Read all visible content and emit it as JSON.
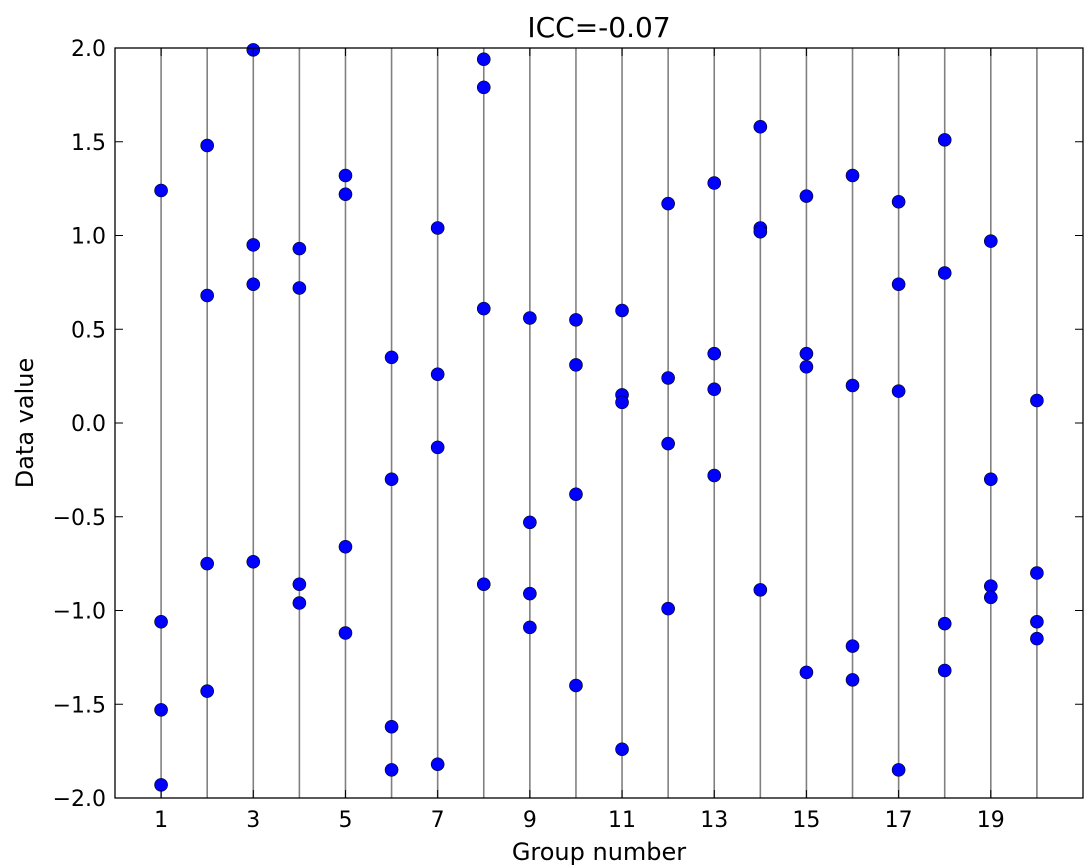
{
  "chart_data": {
    "type": "scatter",
    "title": "ICC=-0.07",
    "xlabel": "Group number",
    "ylabel": "Data value",
    "xlim": [
      0,
      21
    ],
    "ylim": [
      -2.0,
      2.0
    ],
    "xticks": [
      1,
      3,
      5,
      7,
      9,
      11,
      13,
      15,
      17,
      19
    ],
    "xtick_labels": [
      "1",
      "3",
      "5",
      "7",
      "9",
      "11",
      "13",
      "15",
      "17",
      "19"
    ],
    "yticks": [
      2.0,
      1.5,
      1.0,
      0.5,
      0.0,
      -0.5,
      -1.0,
      -1.5,
      -2.0
    ],
    "ytick_labels": [
      "2.0",
      "1.5",
      "1.0",
      "0.5",
      "0.0",
      "−0.5",
      "−1.0",
      "−1.5",
      "−2.0"
    ],
    "group_lines": [
      1,
      2,
      3,
      4,
      5,
      6,
      7,
      8,
      9,
      10,
      11,
      12,
      13,
      14,
      15,
      16,
      17,
      18,
      19,
      20
    ],
    "grid": false,
    "marker_color": "#0000ff",
    "line_color": "#808080",
    "points": [
      {
        "x": 1,
        "y": 1.24
      },
      {
        "x": 1,
        "y": -1.06
      },
      {
        "x": 1,
        "y": -1.53
      },
      {
        "x": 1,
        "y": -1.93
      },
      {
        "x": 2,
        "y": 1.48
      },
      {
        "x": 2,
        "y": 0.68
      },
      {
        "x": 2,
        "y": -0.75
      },
      {
        "x": 2,
        "y": -1.43
      },
      {
        "x": 3,
        "y": 1.99
      },
      {
        "x": 3,
        "y": 0.95
      },
      {
        "x": 3,
        "y": 0.74
      },
      {
        "x": 3,
        "y": -0.74
      },
      {
        "x": 4,
        "y": 0.93
      },
      {
        "x": 4,
        "y": 0.72
      },
      {
        "x": 4,
        "y": -0.86
      },
      {
        "x": 4,
        "y": -0.96
      },
      {
        "x": 5,
        "y": 1.32
      },
      {
        "x": 5,
        "y": 1.22
      },
      {
        "x": 5,
        "y": -0.66
      },
      {
        "x": 5,
        "y": -1.12
      },
      {
        "x": 6,
        "y": 0.35
      },
      {
        "x": 6,
        "y": -0.3
      },
      {
        "x": 6,
        "y": -1.62
      },
      {
        "x": 6,
        "y": -1.85
      },
      {
        "x": 7,
        "y": 1.04
      },
      {
        "x": 7,
        "y": 0.26
      },
      {
        "x": 7,
        "y": -0.13
      },
      {
        "x": 7,
        "y": -1.82
      },
      {
        "x": 8,
        "y": 1.94
      },
      {
        "x": 8,
        "y": 1.79
      },
      {
        "x": 8,
        "y": 0.61
      },
      {
        "x": 8,
        "y": -0.86
      },
      {
        "x": 9,
        "y": 0.56
      },
      {
        "x": 9,
        "y": -0.53
      },
      {
        "x": 9,
        "y": -0.91
      },
      {
        "x": 9,
        "y": -1.09
      },
      {
        "x": 10,
        "y": 0.55
      },
      {
        "x": 10,
        "y": 0.31
      },
      {
        "x": 10,
        "y": -0.38
      },
      {
        "x": 10,
        "y": -1.4
      },
      {
        "x": 11,
        "y": 0.6
      },
      {
        "x": 11,
        "y": 0.15
      },
      {
        "x": 11,
        "y": 0.11
      },
      {
        "x": 11,
        "y": -1.74
      },
      {
        "x": 12,
        "y": 1.17
      },
      {
        "x": 12,
        "y": 0.24
      },
      {
        "x": 12,
        "y": -0.11
      },
      {
        "x": 12,
        "y": -0.99
      },
      {
        "x": 13,
        "y": 1.28
      },
      {
        "x": 13,
        "y": 0.37
      },
      {
        "x": 13,
        "y": 0.18
      },
      {
        "x": 13,
        "y": -0.28
      },
      {
        "x": 14,
        "y": 1.58
      },
      {
        "x": 14,
        "y": 1.04
      },
      {
        "x": 14,
        "y": 1.02
      },
      {
        "x": 14,
        "y": -0.89
      },
      {
        "x": 15,
        "y": 1.21
      },
      {
        "x": 15,
        "y": 0.37
      },
      {
        "x": 15,
        "y": 0.3
      },
      {
        "x": 15,
        "y": -1.33
      },
      {
        "x": 16,
        "y": 1.32
      },
      {
        "x": 16,
        "y": 0.2
      },
      {
        "x": 16,
        "y": -1.19
      },
      {
        "x": 16,
        "y": -1.37
      },
      {
        "x": 17,
        "y": 1.18
      },
      {
        "x": 17,
        "y": 0.74
      },
      {
        "x": 17,
        "y": 0.17
      },
      {
        "x": 17,
        "y": -1.85
      },
      {
        "x": 18,
        "y": 1.51
      },
      {
        "x": 18,
        "y": 0.8
      },
      {
        "x": 18,
        "y": -1.07
      },
      {
        "x": 18,
        "y": -1.32
      },
      {
        "x": 19,
        "y": 0.97
      },
      {
        "x": 19,
        "y": -0.3
      },
      {
        "x": 19,
        "y": -0.87
      },
      {
        "x": 19,
        "y": -0.93
      },
      {
        "x": 20,
        "y": 0.12
      },
      {
        "x": 20,
        "y": -0.8
      },
      {
        "x": 20,
        "y": -1.06
      },
      {
        "x": 20,
        "y": -1.15
      }
    ]
  }
}
